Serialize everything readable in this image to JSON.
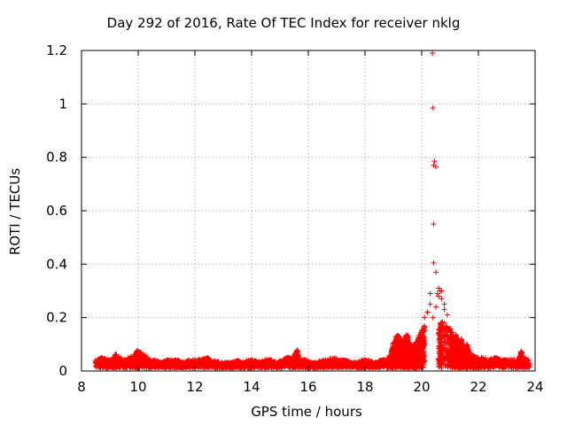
{
  "chart_data": {
    "type": "scatter",
    "title": "Day 292 of 2016, Rate Of TEC Index for receiver nklg",
    "xlabel": "GPS time / hours",
    "ylabel": "ROTI / TECUs",
    "xlim": [
      8,
      24
    ],
    "ylim": [
      0,
      1.2
    ],
    "xticks": [
      8,
      10,
      12,
      14,
      16,
      18,
      20,
      22,
      24
    ],
    "yticks": [
      0,
      0.2,
      0.4,
      0.6,
      0.8,
      1,
      1.2
    ],
    "grid": true,
    "marker": "+",
    "color": "#ff0000",
    "series": [
      {
        "name": "ROTI",
        "x": [
          8.5,
          8.7,
          8.9,
          9.1,
          9.3,
          9.5,
          9.7,
          9.9,
          10.05,
          10.2,
          10.4,
          10.6,
          10.8,
          11.0,
          11.2,
          11.4,
          11.6,
          11.8,
          12.0,
          12.2,
          12.4,
          12.6,
          12.9,
          13.1,
          13.3,
          13.5,
          13.7,
          13.9,
          14.1,
          14.3,
          14.5,
          14.7,
          14.9,
          15.1,
          15.3,
          15.5,
          15.7,
          15.9,
          16.1,
          16.3,
          16.5,
          16.7,
          16.9,
          17.1,
          17.3,
          17.5,
          17.7,
          17.9,
          18.1,
          18.3,
          18.5,
          18.7,
          18.9,
          19.0,
          19.1,
          19.2,
          19.3,
          19.4,
          19.5,
          19.6,
          19.7,
          19.8,
          19.9,
          20.0,
          20.1,
          20.2,
          20.3,
          20.4,
          20.5,
          20.6,
          20.7,
          20.8,
          20.9,
          21.0,
          21.1,
          21.2,
          21.3,
          21.4,
          21.5,
          21.6,
          21.7,
          21.8,
          21.9,
          22.0,
          22.2,
          22.4,
          22.6,
          22.8,
          23.0,
          23.2,
          23.4,
          23.6,
          23.8,
          20.38,
          20.4,
          20.45,
          20.42,
          20.5,
          20.42,
          20.42,
          20.5,
          20.6,
          20.65,
          20.55,
          20.7,
          20.8,
          20.7,
          20.3,
          20.2,
          20.1,
          20.6,
          19.1,
          19.5,
          21.2,
          21.4,
          21.6,
          19.8,
          9.2,
          9.95,
          15.6,
          23.5
        ],
        "y": [
          0.03,
          0.04,
          0.03,
          0.03,
          0.04,
          0.03,
          0.04,
          0.05,
          0.06,
          0.05,
          0.03,
          0.03,
          0.02,
          0.03,
          0.03,
          0.03,
          0.02,
          0.03,
          0.03,
          0.03,
          0.04,
          0.03,
          0.02,
          0.02,
          0.02,
          0.03,
          0.02,
          0.03,
          0.03,
          0.02,
          0.03,
          0.03,
          0.02,
          0.03,
          0.04,
          0.04,
          0.03,
          0.03,
          0.02,
          0.02,
          0.03,
          0.03,
          0.04,
          0.03,
          0.03,
          0.02,
          0.02,
          0.03,
          0.03,
          0.02,
          0.03,
          0.03,
          0.05,
          0.09,
          0.11,
          0.12,
          0.1,
          0.11,
          0.13,
          0.09,
          0.08,
          0.1,
          0.12,
          0.14,
          0.2,
          0.22,
          0.25,
          0.2,
          0.24,
          0.28,
          0.3,
          0.23,
          0.21,
          0.15,
          0.12,
          0.11,
          0.1,
          0.08,
          0.07,
          0.06,
          0.05,
          0.05,
          0.04,
          0.04,
          0.04,
          0.03,
          0.04,
          0.03,
          0.03,
          0.03,
          0.03,
          0.04,
          0.03,
          1.19,
          0.985,
          0.785,
          0.77,
          0.765,
          0.55,
          0.405,
          0.37,
          0.31,
          0.3,
          0.29,
          0.27,
          0.25,
          0.18,
          0.29,
          0.22,
          0.16,
          0.14,
          0.12,
          0.1,
          0.13,
          0.11,
          0.09,
          0.08,
          0.055,
          0.065,
          0.07,
          0.065
        ]
      }
    ]
  }
}
